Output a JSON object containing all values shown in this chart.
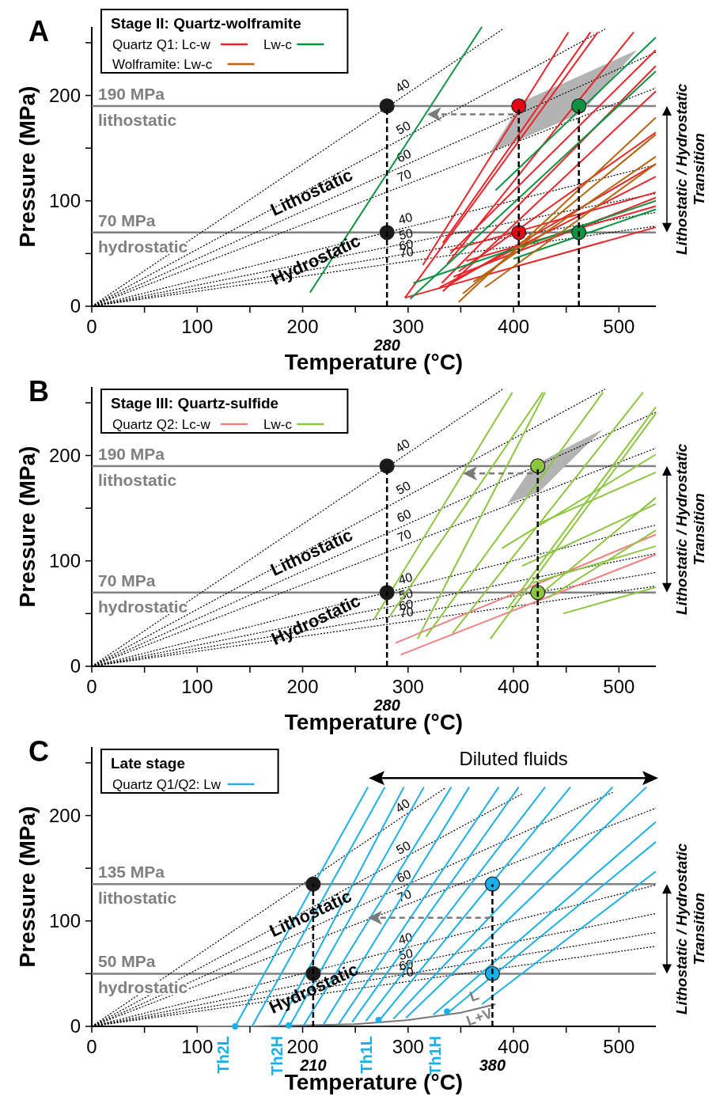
{
  "chart_data": [
    {
      "type": "line",
      "title": "A",
      "xlabel": "Temperature (°C)",
      "ylabel": "Pressure (MPa)",
      "legend_title": "Stage II: Quartz-wolframite",
      "legend": "top left",
      "xlim": [
        0,
        535
      ],
      "ylim": [
        0,
        265
      ],
      "xticks": [
        0,
        {
          "value": 50,
          "label": null
        },
        100,
        {
          "value": 150,
          "label": null
        },
        200,
        {
          "value": 250,
          "label": null
        },
        300,
        {
          "value": 350,
          "label": null
        },
        400,
        {
          "value": 450,
          "label": null
        },
        500
      ],
      "yticks": [
        0,
        {
          "value": 50,
          "label": null
        },
        100,
        {
          "value": 150,
          "label": null
        },
        200,
        {
          "value": 250,
          "label": null
        }
      ],
      "ref_lines": [
        {
          "axis": "y",
          "value": 190,
          "label": "190 MPa\nlithostatic",
          "color": "#808080"
        },
        {
          "axis": "y",
          "value": 70,
          "label": "70 MPa\nhydrostatic",
          "color": "#808080"
        }
      ],
      "annotations": [
        "Lithostatic / Hydrostatic Transition",
        "Lithostatic",
        "Hydrostatic",
        "280"
      ],
      "series": [
        {
          "type": "line",
          "color": "#b3b3b3",
          "x": [
            378,
            408,
            464,
            517
          ],
          "values": [
            null,
            null,
            null,
            null
          ],
          "upper": [
            146,
            194,
            219,
            243
          ],
          "lower": [
            146,
            159,
            183,
            243
          ]
        },
        {
          "name": "40",
          "color": "#000000",
          "line_style": "dotted",
          "x": [
            0,
            390
          ],
          "values": [
            0,
            263
          ]
        },
        {
          "name": "50",
          "color": "#000000",
          "line_style": "dotted",
          "x": [
            0,
            487
          ],
          "values": [
            0,
            263
          ]
        },
        {
          "name": "60",
          "color": "#000000",
          "line_style": "dotted",
          "x": [
            0,
            535
          ],
          "values": [
            0,
            241
          ]
        },
        {
          "name": "70",
          "color": "#000000",
          "line_style": "dotted",
          "x": [
            0,
            535
          ],
          "values": [
            0,
            207
          ]
        },
        {
          "name": "40",
          "color": "#000000",
          "line_style": "dotted",
          "x": [
            0,
            535
          ],
          "values": [
            0,
            134
          ]
        },
        {
          "name": "50",
          "color": "#000000",
          "line_style": "dotted",
          "x": [
            0,
            535
          ],
          "values": [
            0,
            107
          ]
        },
        {
          "name": "60",
          "color": "#000000",
          "line_style": "dotted",
          "x": [
            0,
            535
          ],
          "values": [
            0,
            89
          ]
        },
        {
          "name": "70",
          "color": "#000000",
          "line_style": "dotted",
          "x": [
            0,
            535
          ],
          "values": [
            0,
            76
          ]
        },
        {
          "name": "Quartz Q1: Lc-w",
          "color": "#e8262a",
          "x": [
            314,
            452
          ],
          "values": [
            39,
            260
          ]
        },
        {
          "color": "#e8262a",
          "x": [
            333,
            473
          ],
          "values": [
            60,
            260
          ]
        },
        {
          "color": "#e8262a",
          "x": [
            297,
            480
          ],
          "values": [
            8,
            260
          ]
        },
        {
          "color": "#e8262a",
          "x": [
            337,
            514
          ],
          "values": [
            40,
            260
          ]
        },
        {
          "color": "#e8262a",
          "x": [
            340,
            535
          ],
          "values": [
            50,
            243
          ]
        },
        {
          "color": "#e8262a",
          "x": [
            332,
            535
          ],
          "values": [
            22,
            228
          ]
        },
        {
          "color": "#e8262a",
          "x": [
            333,
            535
          ],
          "values": [
            14,
            204
          ]
        },
        {
          "color": "#e8262a",
          "x": [
            348,
            535
          ],
          "values": [
            33,
            165
          ]
        },
        {
          "color": "#e8262a",
          "x": [
            338,
            535
          ],
          "values": [
            20,
            135
          ]
        },
        {
          "color": "#e8262a",
          "x": [
            330,
            535
          ],
          "values": [
            18,
            123
          ]
        },
        {
          "color": "#e8262a",
          "x": [
            340,
            535
          ],
          "values": [
            53,
            108
          ]
        },
        {
          "color": "#e8262a",
          "x": [
            343,
            535
          ],
          "values": [
            28,
            103
          ]
        },
        {
          "color": "#e8262a",
          "x": [
            297,
            535
          ],
          "values": [
            8,
            75
          ]
        },
        {
          "color": "#e8262a",
          "x": [
            355,
            535
          ],
          "values": [
            43,
            95
          ]
        },
        {
          "name": "Lw-c",
          "color": "#0a9340",
          "x": [
            207,
            370
          ],
          "values": [
            13,
            265
          ]
        },
        {
          "color": "#0a9340",
          "x": [
            302,
            535
          ],
          "values": [
            7,
            223
          ]
        },
        {
          "color": "#0a9340",
          "x": [
            383,
            535
          ],
          "values": [
            110,
            255
          ]
        },
        {
          "color": "#0a9340",
          "x": [
            305,
            535
          ],
          "values": [
            22,
            100
          ]
        },
        {
          "color": "#0a9340",
          "x": [
            400,
            535
          ],
          "values": [
            45,
            92
          ]
        },
        {
          "name": "Wolframite: Lw-c",
          "color": "#b5650d",
          "x": [
            348,
            535
          ],
          "values": [
            4,
            179
          ]
        },
        {
          "color": "#b5650d",
          "x": [
            352,
            535
          ],
          "values": [
            12,
            163
          ]
        },
        {
          "color": "#b5650d",
          "x": [
            362,
            535
          ],
          "values": [
            23,
            142
          ]
        },
        {
          "color": "#b5650d",
          "x": [
            373,
            535
          ],
          "values": [
            18,
            135
          ]
        },
        {
          "type": "scatter",
          "color": "#1a1a1a",
          "marker": "circle",
          "x": [
            280,
            280
          ],
          "values": [
            190,
            70
          ]
        },
        {
          "type": "scatter",
          "color": "#e30613",
          "marker": "circle",
          "x": [
            405,
            405
          ],
          "values": [
            190,
            70
          ]
        },
        {
          "type": "scatter",
          "color": "#0a9340",
          "marker": "circle",
          "x": [
            462,
            462
          ],
          "values": [
            190,
            70
          ]
        },
        {
          "color": "#000000",
          "line_style": "dashed",
          "x": [
            280,
            280
          ],
          "values": [
            0,
            190
          ]
        },
        {
          "color": "#000000",
          "line_style": "dashed",
          "x": [
            405,
            405
          ],
          "values": [
            0,
            190
          ]
        },
        {
          "color": "#000000",
          "line_style": "dashed",
          "x": [
            462,
            462
          ],
          "values": [
            0,
            190
          ]
        }
      ]
    },
    {
      "type": "line",
      "title": "B",
      "xlabel": "Temperature (°C)",
      "ylabel": "Pressure (MPa)",
      "legend_title": "Stage III: Quartz-sulfide",
      "legend": "top left",
      "xlim": [
        0,
        535
      ],
      "ylim": [
        0,
        265
      ],
      "xticks": [
        0,
        {
          "value": 50,
          "label": null
        },
        100,
        {
          "value": 150,
          "label": null
        },
        200,
        {
          "value": 250,
          "label": null
        },
        300,
        {
          "value": 350,
          "label": null
        },
        400,
        {
          "value": 450,
          "label": null
        },
        500
      ],
      "yticks": [
        0,
        {
          "value": 50,
          "label": null
        },
        100,
        {
          "value": 150,
          "label": null
        },
        200,
        {
          "value": 250,
          "label": null
        }
      ],
      "ref_lines": [
        {
          "axis": "y",
          "value": 190,
          "label": "190 MPa\nlithostatic",
          "color": "#808080"
        },
        {
          "axis": "y",
          "value": 70,
          "label": "70 MPa\nhydrostatic",
          "color": "#808080"
        }
      ],
      "annotations": [
        "Lithostatic / Hydrostatic Transition",
        "Lithostatic",
        "Hydrostatic",
        "280"
      ],
      "series": [
        {
          "type": "line",
          "color": "#b3b3b3",
          "x": [
            394,
            418,
            424,
            448,
            485
          ],
          "values": [
            null,
            null,
            null,
            null,
            null
          ],
          "upper": [
            154,
            190,
            193,
            206,
            225
          ],
          "lower": [
            154,
            163,
            165,
            189,
            225
          ]
        },
        {
          "name": "40",
          "color": "#000000",
          "line_style": "dotted",
          "x": [
            0,
            390
          ],
          "values": [
            0,
            263
          ]
        },
        {
          "name": "50",
          "color": "#000000",
          "line_style": "dotted",
          "x": [
            0,
            487
          ],
          "values": [
            0,
            263
          ]
        },
        {
          "name": "60",
          "color": "#000000",
          "line_style": "dotted",
          "x": [
            0,
            535
          ],
          "values": [
            0,
            241
          ]
        },
        {
          "name": "70",
          "color": "#000000",
          "line_style": "dotted",
          "x": [
            0,
            535
          ],
          "values": [
            0,
            207
          ]
        },
        {
          "name": "40",
          "color": "#000000",
          "line_style": "dotted",
          "x": [
            0,
            535
          ],
          "values": [
            0,
            134
          ]
        },
        {
          "name": "50",
          "color": "#000000",
          "line_style": "dotted",
          "x": [
            0,
            535
          ],
          "values": [
            0,
            107
          ]
        },
        {
          "name": "60",
          "color": "#000000",
          "line_style": "dotted",
          "x": [
            0,
            535
          ],
          "values": [
            0,
            89
          ]
        },
        {
          "name": "70",
          "color": "#000000",
          "line_style": "dotted",
          "x": [
            0,
            535
          ],
          "values": [
            0,
            76
          ]
        },
        {
          "name": "Quartz Q2: Lc-w",
          "color": "#f37f80",
          "x": [
            288,
            535
          ],
          "values": [
            22,
            125
          ]
        },
        {
          "color": "#f37f80",
          "x": [
            293,
            535
          ],
          "values": [
            11,
            106
          ]
        },
        {
          "name": "Lw-c",
          "color": "#8cc63f",
          "x": [
            268,
            399
          ],
          "values": [
            45,
            260
          ]
        },
        {
          "color": "#8cc63f",
          "x": [
            283,
            428
          ],
          "values": [
            48,
            260
          ]
        },
        {
          "color": "#8cc63f",
          "x": [
            309,
            430
          ],
          "values": [
            26,
            260
          ]
        },
        {
          "color": "#8cc63f",
          "x": [
            317,
            485
          ],
          "values": [
            28,
            260
          ]
        },
        {
          "color": "#8cc63f",
          "x": [
            342,
            523
          ],
          "values": [
            31,
            260
          ]
        },
        {
          "color": "#8cc63f",
          "x": [
            394,
            535
          ],
          "values": [
            54,
            246
          ]
        },
        {
          "color": "#8cc63f",
          "x": [
            378,
            535
          ],
          "values": [
            26,
            240
          ]
        },
        {
          "color": "#8cc63f",
          "x": [
            389,
            535
          ],
          "values": [
            112,
            201
          ]
        },
        {
          "color": "#8cc63f",
          "x": [
            423,
            535
          ],
          "values": [
            135,
            184
          ]
        },
        {
          "color": "#8cc63f",
          "x": [
            430,
            535
          ],
          "values": [
            72,
            160
          ]
        },
        {
          "color": "#8cc63f",
          "x": [
            433,
            535
          ],
          "values": [
            65,
            129
          ]
        },
        {
          "color": "#8cc63f",
          "x": [
            447,
            535
          ],
          "values": [
            50,
            75
          ]
        },
        {
          "color": "#8cc63f",
          "x": [
            418,
            535
          ],
          "values": [
            79,
            114
          ]
        },
        {
          "color": "#8cc63f",
          "x": [
            408,
            535
          ],
          "values": [
            95,
            154
          ]
        },
        {
          "type": "scatter",
          "color": "#1a1a1a",
          "marker": "circle",
          "x": [
            280,
            280
          ],
          "values": [
            190,
            70
          ]
        },
        {
          "type": "scatter",
          "color": "#8cc63f",
          "marker": "circle",
          "x": [
            423,
            423
          ],
          "values": [
            190,
            70
          ]
        },
        {
          "color": "#000000",
          "line_style": "dashed",
          "x": [
            280,
            280
          ],
          "values": [
            0,
            190
          ]
        },
        {
          "color": "#000000",
          "line_style": "dashed",
          "x": [
            423,
            423
          ],
          "values": [
            0,
            190
          ]
        }
      ]
    },
    {
      "type": "line",
      "title": "C",
      "xlabel": "Temperature (°C)",
      "ylabel": "Pressure (MPa)",
      "legend_title": "Late stage",
      "legend": "top left",
      "xlim": [
        0,
        535
      ],
      "ylim": [
        0,
        265
      ],
      "xticks": [
        0,
        {
          "value": 50,
          "label": null
        },
        100,
        {
          "value": 150,
          "label": null
        },
        200,
        {
          "value": 250,
          "label": null
        },
        300,
        {
          "value": 350,
          "label": null
        },
        400,
        {
          "value": 450,
          "label": null
        },
        500
      ],
      "yticks": [
        0,
        {
          "value": 50,
          "label": null
        },
        100,
        {
          "value": 150,
          "label": null
        },
        200,
        {
          "value": 250,
          "label": null
        }
      ],
      "ref_lines": [
        {
          "axis": "y",
          "value": 135,
          "label": "135 MPa\nlithostatic",
          "color": "#808080"
        },
        {
          "axis": "y",
          "value": 50,
          "label": "50 MPa\nhydrostatic",
          "color": "#808080"
        }
      ],
      "annotations": [
        "Lithostatic / Hydrostatic Transition",
        "Diluted fluids",
        {
          "text": "Lithostatic",
          "x": 262,
          "y": 103
        },
        "Hydrostatic",
        "L",
        "L+V",
        "210",
        "380",
        "Th2L",
        "Th2H",
        "Th1L",
        "Th1H"
      ],
      "series": [
        {
          "name": "40",
          "color": "#000000",
          "line_style": "dotted",
          "x": [
            0,
            335
          ],
          "values": [
            0,
            226
          ]
        },
        {
          "name": "50",
          "color": "#000000",
          "line_style": "dotted",
          "x": [
            0,
            409
          ],
          "values": [
            0,
            221
          ]
        },
        {
          "name": "60",
          "color": "#000000",
          "line_style": "dotted",
          "x": [
            0,
            494
          ],
          "values": [
            0,
            222
          ]
        },
        {
          "name": "70",
          "color": "#000000",
          "line_style": "dotted",
          "x": [
            0,
            535
          ],
          "values": [
            0,
            207
          ]
        },
        {
          "name": "40",
          "color": "#000000",
          "line_style": "dotted",
          "x": [
            0,
            535
          ],
          "values": [
            0,
            134
          ]
        },
        {
          "name": "50",
          "color": "#000000",
          "line_style": "dotted",
          "x": [
            0,
            535
          ],
          "values": [
            0,
            107
          ]
        },
        {
          "name": "60",
          "color": "#000000",
          "line_style": "dotted",
          "x": [
            0,
            535
          ],
          "values": [
            0,
            89
          ]
        },
        {
          "name": "70",
          "color": "#000000",
          "line_style": "dotted",
          "x": [
            0,
            535
          ],
          "values": [
            0,
            76
          ]
        },
        {
          "color": "#777777",
          "x": [
            100,
            150,
            200,
            250,
            300,
            350,
            383
          ],
          "values": [
            0,
            0,
            1,
            2,
            6,
            13,
            21
          ]
        },
        {
          "name": "Quartz Q1/Q2: Lw",
          "color": "#1ab0e8",
          "x": [
            136,
            262
          ],
          "values": [
            0,
            227
          ]
        },
        {
          "color": "#1ab0e8",
          "x": [
            152,
            278
          ],
          "values": [
            0,
            227
          ]
        },
        {
          "color": "#1ab0e8",
          "x": [
            177,
            296
          ],
          "values": [
            0,
            227
          ]
        },
        {
          "color": "#1ab0e8",
          "x": [
            188,
            315
          ],
          "values": [
            1,
            227
          ]
        },
        {
          "color": "#1ab0e8",
          "x": [
            201,
            341
          ],
          "values": [
            1,
            227
          ]
        },
        {
          "color": "#1ab0e8",
          "x": [
            220,
            358
          ],
          "values": [
            2,
            227
          ]
        },
        {
          "color": "#1ab0e8",
          "x": [
            234,
            386
          ],
          "values": [
            2,
            227
          ]
        },
        {
          "color": "#1ab0e8",
          "x": [
            247,
            405
          ],
          "values": [
            4,
            227
          ]
        },
        {
          "color": "#1ab0e8",
          "x": [
            260,
            430
          ],
          "values": [
            5,
            227
          ]
        },
        {
          "color": "#1ab0e8",
          "x": [
            273,
            454
          ],
          "values": [
            6,
            227
          ]
        },
        {
          "color": "#1ab0e8",
          "x": [
            286,
            494
          ],
          "values": [
            7,
            227
          ]
        },
        {
          "color": "#1ab0e8",
          "x": [
            298,
            526
          ],
          "values": [
            8,
            227
          ]
        },
        {
          "color": "#1ab0e8",
          "x": [
            324,
            535
          ],
          "values": [
            11,
            194
          ]
        },
        {
          "color": "#1ab0e8",
          "x": [
            338,
            535
          ],
          "values": [
            13,
            175
          ]
        },
        {
          "color": "#1ab0e8",
          "x": [
            370,
            535
          ],
          "values": [
            21,
            147
          ]
        },
        {
          "type": "scatter",
          "color": "#1ab0e8",
          "x": [
            136,
            187,
            272,
            337
          ],
          "values": [
            0,
            1,
            6,
            14
          ]
        },
        {
          "type": "scatter",
          "color": "#1a1a1a",
          "marker": "circle",
          "x": [
            210,
            210
          ],
          "values": [
            135,
            50
          ]
        },
        {
          "type": "scatter",
          "color": "#1ab0e8",
          "marker": "circle",
          "x": [
            380,
            380
          ],
          "values": [
            135,
            50
          ]
        },
        {
          "color": "#000000",
          "line_style": "dashed",
          "x": [
            210,
            210
          ],
          "values": [
            0,
            135
          ]
        },
        {
          "color": "#000000",
          "line_style": "dashed",
          "x": [
            380,
            380
          ],
          "values": [
            0,
            135
          ]
        }
      ]
    }
  ]
}
